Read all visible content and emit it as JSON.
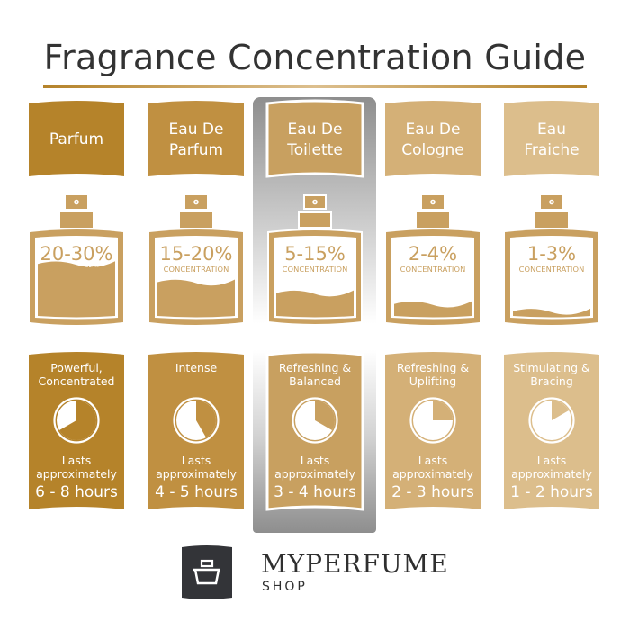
{
  "title": "Fragrance Concentration Guide",
  "highlighted_index": 2,
  "concentration_label": "CONCENTRATION",
  "lasts_line1": "Lasts",
  "lasts_line2": "approximately",
  "columns": [
    {
      "name_lines": [
        "Parfum"
      ],
      "percent": "20-30%",
      "fill_level": 0.3,
      "desc_lines": [
        "Powerful,",
        "Concentrated"
      ],
      "hours": "6 - 8 hours",
      "clock_hours": 8,
      "color": "#b5832a"
    },
    {
      "name_lines": [
        "Eau De",
        "Parfum"
      ],
      "percent": "15-20%",
      "fill_level": 0.2,
      "desc_lines": [
        "Intense"
      ],
      "hours": "4 - 5 hours",
      "clock_hours": 5,
      "color": "#c09041"
    },
    {
      "name_lines": [
        "Eau De",
        "Toilette"
      ],
      "percent": "5-15%",
      "fill_level": 0.14,
      "desc_lines": [
        "Refreshing &",
        "Balanced"
      ],
      "hours": "3 - 4 hours",
      "clock_hours": 4,
      "color": "#c8a060"
    },
    {
      "name_lines": [
        "Eau De",
        "Cologne"
      ],
      "percent": "2-4%",
      "fill_level": 0.08,
      "desc_lines": [
        "Refreshing &",
        "Uplifting"
      ],
      "hours": "2 - 3 hours",
      "clock_hours": 3,
      "color": "#d4b077"
    },
    {
      "name_lines": [
        "Eau",
        "Fraiche"
      ],
      "percent": "1-3%",
      "fill_level": 0.04,
      "desc_lines": [
        "Stimulating &",
        "Bracing"
      ],
      "hours": "1 - 2 hours",
      "clock_hours": 2,
      "color": "#dcbe8c"
    }
  ],
  "bottle_color": "#c9a060",
  "logo": {
    "brand": "MYPERFUME",
    "sub": "SHOP",
    "color": "#333438"
  }
}
